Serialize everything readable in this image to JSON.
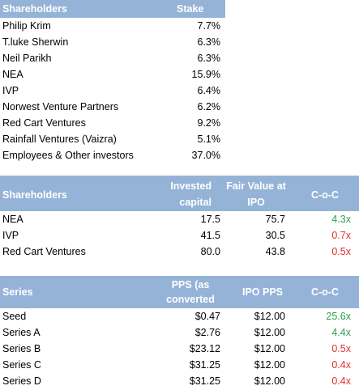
{
  "table1": {
    "header": {
      "col1": "Shareholders",
      "col2": "Stake"
    },
    "rows": [
      {
        "name": "Philip Krim",
        "stake": "7.7%"
      },
      {
        "name": "T.luke Sherwin",
        "stake": "6.3%"
      },
      {
        "name": "Neil Parikh",
        "stake": "6.3%"
      },
      {
        "name": "NEA",
        "stake": "15.9%"
      },
      {
        "name": "IVP",
        "stake": "6.4%"
      },
      {
        "name": "Norwest Venture Partners",
        "stake": "6.2%"
      },
      {
        "name": "Red Cart Ventures",
        "stake": "9.2%"
      },
      {
        "name": "Rainfall Ventures (Vaizra)",
        "stake": "5.1%"
      },
      {
        "name": "Employees & Other investors",
        "stake": "37.0%"
      }
    ]
  },
  "table2": {
    "header": {
      "col1": "Shareholders",
      "col2_line1": "Invested",
      "col2_line2": "capital",
      "col3_line1": "Fair Value at",
      "col3_line2": "IPO",
      "col4": "C-o-C"
    },
    "rows": [
      {
        "name": "NEA",
        "invested": "17.5",
        "fair_value": "75.7",
        "coc": "4.3x",
        "coc_color": "#2e9e4f"
      },
      {
        "name": "IVP",
        "invested": "41.5",
        "fair_value": "30.5",
        "coc": "0.7x",
        "coc_color": "#e0312b"
      },
      {
        "name": "Red Cart Ventures",
        "invested": "80.0",
        "fair_value": "43.8",
        "coc": "0.5x",
        "coc_color": "#e0312b"
      }
    ]
  },
  "table3": {
    "header": {
      "col1": "Series",
      "col2_line1": "PPS (as",
      "col2_line2": "converted",
      "col3": "IPO PPS",
      "col4": "C-o-C"
    },
    "rows": [
      {
        "series": "Seed",
        "pps": "$0.47",
        "ipo_pps": "$12.00",
        "coc": "25.6x",
        "coc_color": "#2e9e4f"
      },
      {
        "series": "Series A",
        "pps": "$2.76",
        "ipo_pps": "$12.00",
        "coc": "4.4x",
        "coc_color": "#2e9e4f"
      },
      {
        "series": "Series B",
        "pps": "$23.12",
        "ipo_pps": "$12.00",
        "coc": "0.5x",
        "coc_color": "#e0312b"
      },
      {
        "series": "Series C",
        "pps": "$31.25",
        "ipo_pps": "$12.00",
        "coc": "0.4x",
        "coc_color": "#e0312b"
      },
      {
        "series": "Series D",
        "pps": "$31.25",
        "ipo_pps": "$12.00",
        "coc": "0.4x",
        "coc_color": "#e0312b"
      }
    ]
  },
  "colors": {
    "header_bg": "#95b3d7",
    "header_text": "#ffffff",
    "positive": "#2e9e4f",
    "negative": "#e0312b"
  }
}
